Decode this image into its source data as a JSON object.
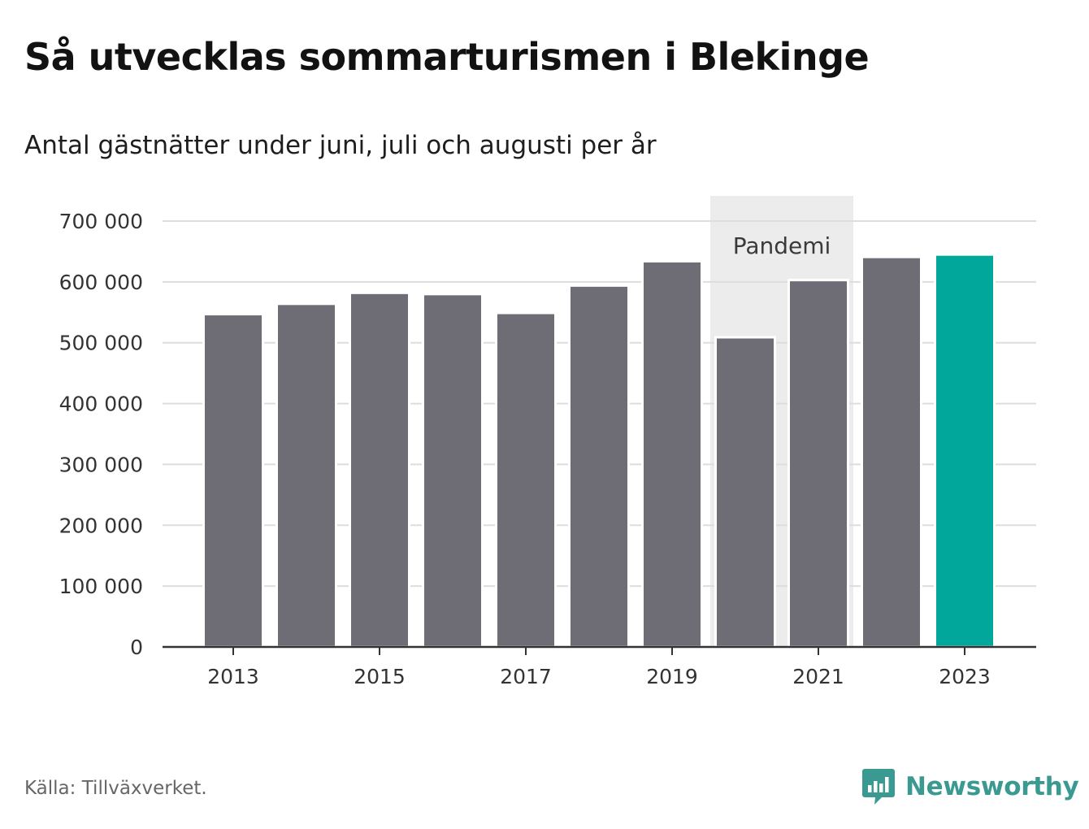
{
  "title": "Så utvecklas sommarturismen i Blekinge",
  "subtitle": "Antal gästnätter under juni, juli och augusti per år",
  "source": "Källa: Tillväxverket.",
  "brand": {
    "name": "Newsworthy",
    "color": "#3a9a91",
    "icon": "newsworthy-chart-bubble-icon"
  },
  "chart_data": {
    "type": "bar",
    "categories": [
      "2013",
      "2014",
      "2015",
      "2016",
      "2017",
      "2018",
      "2019",
      "2020",
      "2021",
      "2022",
      "2023"
    ],
    "values": [
      547000,
      564000,
      582000,
      580000,
      549000,
      594000,
      634000,
      509000,
      603000,
      641000,
      645000
    ],
    "x_tick_labels": [
      "2013",
      "2015",
      "2017",
      "2019",
      "2021",
      "2023"
    ],
    "y_ticks": [
      0,
      100000,
      200000,
      300000,
      400000,
      500000,
      600000,
      700000
    ],
    "y_tick_labels": [
      "0",
      "100 000",
      "200 000",
      "300 000",
      "400 000",
      "500 000",
      "600 000",
      "700 000"
    ],
    "ylim": [
      0,
      700000
    ],
    "xlabel": "",
    "ylabel": "",
    "grid": true,
    "bar_color": "#6e6d75",
    "highlight": {
      "category": "2023",
      "color": "#00a79a"
    },
    "annotation": {
      "label": "Pandemi",
      "from": "2020",
      "to": "2021",
      "color": "#ececec"
    }
  }
}
